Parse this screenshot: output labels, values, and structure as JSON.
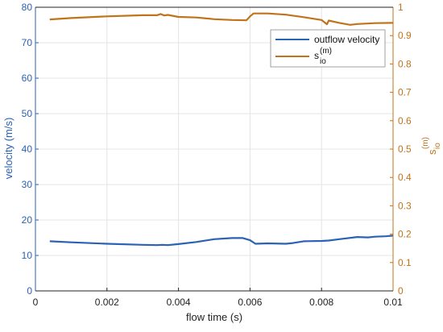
{
  "chart_data": {
    "type": "line",
    "xlabel": "flow time (s)",
    "ylabel_left": "velocity (m/s)",
    "ylabel_right": {
      "base": "s",
      "sup": "(m)",
      "sub": "io"
    },
    "xlim": [
      0,
      0.01
    ],
    "ylim_left": [
      0,
      80
    ],
    "ylim_right": [
      0,
      1
    ],
    "x_ticks": [
      "0",
      "0.002",
      "0.004",
      "0.006",
      "0.008",
      "0.01"
    ],
    "left_ticks": [
      "0",
      "10",
      "20",
      "30",
      "40",
      "50",
      "60",
      "70",
      "80"
    ],
    "right_ticks": [
      "0",
      "0.1",
      "0.2",
      "0.3",
      "0.4",
      "0.5",
      "0.6",
      "0.7",
      "0.8",
      "0.9",
      "1"
    ],
    "grid": true,
    "legend_position": "top-right",
    "colors": {
      "left_axis": "#2a62b5",
      "right_axis": "#c0731b",
      "grid": "#e4e4e4"
    },
    "series": [
      {
        "name": "outflow velocity",
        "axis": "left",
        "color": "#2a62b5",
        "x": [
          0.0004,
          0.001,
          0.002,
          0.003,
          0.0034,
          0.00355,
          0.0037,
          0.004,
          0.0045,
          0.005,
          0.0055,
          0.0058,
          0.006,
          0.00615,
          0.0065,
          0.007,
          0.0072,
          0.0075,
          0.008,
          0.0082,
          0.0085,
          0.009,
          0.0093,
          0.0095,
          0.0098,
          0.01
        ],
        "y": [
          14.0,
          13.7,
          13.3,
          13.0,
          12.9,
          13.0,
          12.9,
          13.2,
          13.8,
          14.6,
          14.9,
          14.9,
          14.3,
          13.3,
          13.4,
          13.3,
          13.5,
          14.0,
          14.1,
          14.2,
          14.6,
          15.2,
          15.1,
          15.3,
          15.4,
          15.6
        ]
      },
      {
        "name": "s_io^(m)",
        "label": {
          "base": "s",
          "sup": "(m)",
          "sub": "io"
        },
        "axis": "right",
        "color": "#c0731b",
        "x": [
          0.0004,
          0.001,
          0.002,
          0.003,
          0.0034,
          0.0035,
          0.0036,
          0.0037,
          0.004,
          0.0045,
          0.005,
          0.0055,
          0.0059,
          0.006,
          0.0061,
          0.0065,
          0.007,
          0.0075,
          0.008,
          0.00815,
          0.0082,
          0.0085,
          0.0088,
          0.009,
          0.0095,
          0.01
        ],
        "y": [
          0.957,
          0.962,
          0.968,
          0.972,
          0.972,
          0.976,
          0.971,
          0.973,
          0.966,
          0.964,
          0.958,
          0.955,
          0.954,
          0.968,
          0.978,
          0.978,
          0.974,
          0.965,
          0.955,
          0.94,
          0.953,
          0.945,
          0.938,
          0.941,
          0.944,
          0.945
        ]
      }
    ]
  }
}
